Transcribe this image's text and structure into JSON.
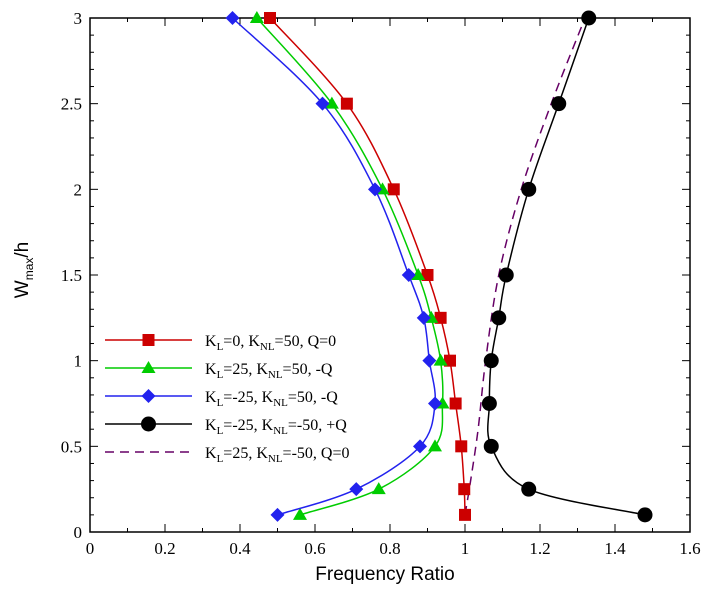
{
  "chart_data": {
    "type": "line",
    "xlabel": "Frequency Ratio",
    "ylabel": {
      "main": "W",
      "sub": "max",
      "tail": "/h"
    },
    "xlim": [
      0,
      1.6
    ],
    "ylim": [
      0,
      3
    ],
    "xticks": [
      0,
      0.2,
      0.4,
      0.6,
      0.8,
      1,
      1.2,
      1.4,
      1.6
    ],
    "xtick_labels": [
      "0",
      "0.2",
      "0.4",
      "0.6",
      "0.8",
      "1",
      "1.2",
      "1.4",
      "1.6"
    ],
    "yticks": [
      0,
      0.5,
      1,
      1.5,
      2,
      2.5,
      3
    ],
    "ytick_labels": [
      "0",
      "0.5",
      "1",
      "1.5",
      "2",
      "2.5",
      "3"
    ],
    "legend_position": "left-bottom",
    "grid": false,
    "series": [
      {
        "legend": [
          [
            "K",
            ""
          ],
          [
            "L",
            "sub"
          ],
          [
            "=0,   K",
            ""
          ],
          [
            "NL",
            "sub"
          ],
          [
            "=50, Q=0",
            ""
          ]
        ],
        "color": "#cc0000",
        "marker": "square",
        "line_style": "solid",
        "x": [
          1.0,
          0.998,
          0.99,
          0.975,
          0.96,
          0.935,
          0.9,
          0.81,
          0.685,
          0.48
        ],
        "y": [
          0.1,
          0.25,
          0.5,
          0.75,
          1.0,
          1.25,
          1.5,
          2.0,
          2.5,
          3.0
        ]
      },
      {
        "legend": [
          [
            "K",
            ""
          ],
          [
            "L",
            "sub"
          ],
          [
            "=25, K",
            ""
          ],
          [
            "NL",
            "sub"
          ],
          [
            "=50, -Q",
            ""
          ]
        ],
        "color": "#00cc00",
        "marker": "triangle",
        "line_style": "solid",
        "x": [
          0.56,
          0.77,
          0.92,
          0.94,
          0.935,
          0.91,
          0.875,
          0.78,
          0.645,
          0.445
        ],
        "y": [
          0.1,
          0.25,
          0.5,
          0.75,
          1.0,
          1.25,
          1.5,
          2.0,
          2.5,
          3.0
        ]
      },
      {
        "legend": [
          [
            "K",
            ""
          ],
          [
            "L",
            "sub"
          ],
          [
            "=-25, K",
            ""
          ],
          [
            "NL",
            "sub"
          ],
          [
            "=50, -Q",
            ""
          ]
        ],
        "color": "#2222ee",
        "marker": "diamond",
        "line_style": "solid",
        "x": [
          0.5,
          0.71,
          0.88,
          0.92,
          0.905,
          0.89,
          0.85,
          0.76,
          0.62,
          0.38
        ],
        "y": [
          0.1,
          0.25,
          0.5,
          0.75,
          1.0,
          1.25,
          1.5,
          2.0,
          2.5,
          3.0
        ]
      },
      {
        "legend": [
          [
            "K",
            ""
          ],
          [
            "L",
            "sub"
          ],
          [
            "=-25, K",
            ""
          ],
          [
            "NL",
            "sub"
          ],
          [
            "=-50, +Q",
            ""
          ]
        ],
        "color": "#000000",
        "marker": "circle",
        "line_style": "solid",
        "x": [
          1.48,
          1.17,
          1.07,
          1.065,
          1.07,
          1.09,
          1.11,
          1.17,
          1.25,
          1.33
        ],
        "y": [
          0.1,
          0.25,
          0.5,
          0.75,
          1.0,
          1.25,
          1.5,
          2.0,
          2.5,
          3.0
        ]
      },
      {
        "legend": [
          [
            "K",
            ""
          ],
          [
            "L",
            "sub"
          ],
          [
            "=25, K",
            ""
          ],
          [
            "NL",
            "sub"
          ],
          [
            "=-50, Q=0",
            ""
          ]
        ],
        "color": "#660066",
        "marker": "none",
        "line_style": "dashed",
        "x": [
          1.0,
          1.015,
          1.035,
          1.055,
          1.09,
          1.15,
          1.23,
          1.32
        ],
        "y": [
          0.1,
          0.3,
          0.6,
          1.0,
          1.5,
          2.0,
          2.5,
          3.0
        ]
      }
    ]
  }
}
